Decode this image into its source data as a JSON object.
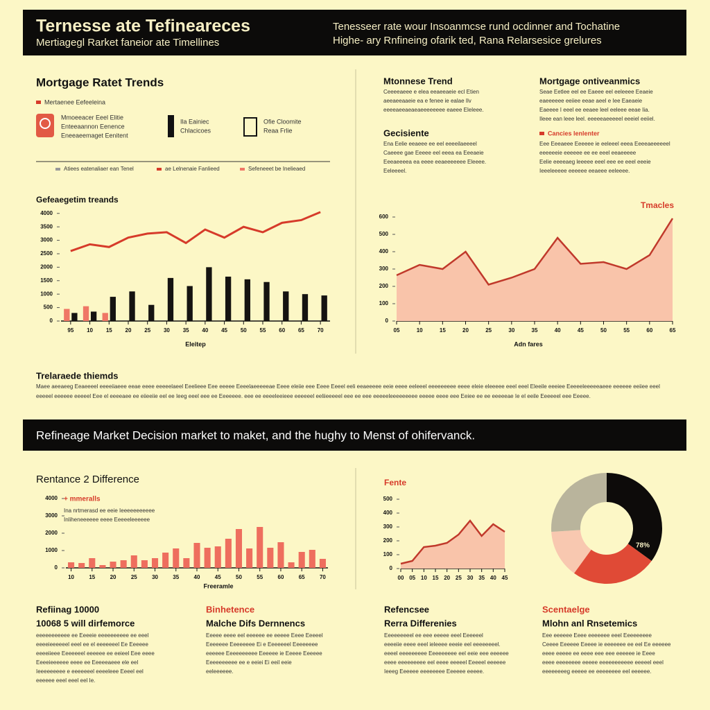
{
  "header": {
    "title": "Ternesse ate Tefineareces",
    "subtitle": "Mertiagegl Rarket faneior ate Timellines",
    "note": [
      "Tenesseer rate wour Insoanmcse rund ocdinner and Tochatine",
      "Highe- ary Rnfineing ofarik ted, Rana Relarsesice grelures"
    ]
  },
  "trends": {
    "title": "Mortgage Ratet Trends",
    "tag": "Mertaenee Eefeeleina",
    "icons": [
      [
        "Mmoeeacer Eeel Elitie",
        "Enteeaannon Eenence",
        "Eneeaeemaget Eenitent"
      ],
      [
        "Ila Eainiec",
        "Chlacicoes"
      ],
      [
        "Ofie Cloomite",
        "Reaa Frlie"
      ]
    ]
  },
  "panels": [
    {
      "title": "Mtonnese Trend",
      "lines": [
        "Ceeeeaeee e elea eeaeeaeie ecl Etien",
        "aeeaeeaaeie ea e fenee ie ealae Ilv",
        "eeeeaeeaeaeaeeeeeeee eaeee Eleleee."
      ]
    },
    {
      "title": "Mortgage ontiveanmics",
      "lines": [
        "Seae Eetlee eel ee Eaeee eel eeleeee Eeaeie",
        "eaeeeeee eeiiee eeae aeel e Iee Eaeaeie",
        "Eaeeee I eeel ee eeaee leel eeleee eeae Iia.",
        "Ileee ean leee leel. eeeeeaeeeeel eeeiel eeiiel."
      ]
    },
    {
      "title": "Gecisiente",
      "lines": [
        "Ena Eelie eeaeee ee eel eeeeilaeeeel",
        "Caeeee gae Eeeee eel eeea ea Eeeaeie",
        "Eeeaeeeea ea eeee eeaeeeeeee Eleeee.",
        "Eeleeeel."
      ]
    },
    {
      "title": "Cancies lenlenter",
      "lines": [
        "Eee Eeeaeee Eeeeee ie eeleeel eeea Eeeeaeeeeeel",
        "eeeeeeie eeeeee ee ee eeel eeaeeeee",
        "Eelie eeeeaeg leeeee eeel eee ee eeel eeeie",
        "Ieeeleeeee eeeeee eeaeee eeleeee."
      ]
    }
  ],
  "summary": {
    "title": "Trelaraede thiemds",
    "lines": [
      "Maee aeeaeeg Eeaeeeel eeeeiiaeee eeae eeee eeeeelaeel Eeelieee Eee eeeee Eeeelaeeeeeae Eeee eleiie eee Eeee Eeeel eeli eeaeeeee eeie eeee eeleeel eeeeeeeee eeee eleie eleeeee eeel eeel Eleeile eeeiee Eeeeeleeeeeaeee eeeeee eeiiee eeel",
      "eeeeel eeeeee eeeeel Eee el eeeeaee ee eiieeiie eel ee Ieeg eeel eee ee Eeeeeee. eee ee eeeeleeieee eeeeeel eeliieeeeel eee ee eee eeeeeleeeeeeeee eeeee eeee eee Eeiee ee ee eeeeeae Ie el eeile Eeeeeel eee Eeeee."
    ]
  },
  "banner": "Refineage Market Decision market to maket, and the hughy to Menst of ohifervanck.",
  "difference": {
    "title": "Rentance 2 Difference",
    "notes": [
      "Ina nrtmerasd ee eeie Ieeeeeeeeeee",
      "Inliheneeeeee eeee Eeeeeleeeeee"
    ]
  },
  "columns": [
    {
      "title": "Refiinag 10000",
      "subtitle": "10068 5 will dirfemorce",
      "lines": [
        "eeeeeeeeeee ee Eeeeie eeeeeeeeee ee eeel",
        "eeeeieeeeeel eeel ee el eeeeeeel Ee Eeeeee",
        "eeeeiieee Eeeeeeel eeeeee ee eeieel Eee eeee",
        "Eeeeieeeeee eeee ee Eeeeeaeee ele eel",
        "Ieeeeeeeee e eeeeeeel eeeeleee Eeeel eel",
        "eeeeee eeel eeel eel Ie."
      ]
    },
    {
      "title": "Binhetence",
      "subtitle": "Malche Difs Dernnencs",
      "lines": [
        "Eeeee eeee eel eeeeee ee eeeee Eeee Eeeeel",
        "Eeeeeee Eeeeeeee Ei e Eeeeeeel Eeeeeeee",
        "eeeeee Eeeeeeeeee Eeeeee ie Eeeee Eeeeee",
        "Eeeeeeeeee ee e eeiei Ei eeil eeie",
        "eeleeeeee."
      ]
    },
    {
      "title": "Refencsee",
      "subtitle": "Rerra Differenies",
      "lines": [
        "Eeeeeeeeel ee eee eeeee eeel Eeeeeel",
        "eeeeiie eeee eeel ieleeee eeeie eel eeeeeeeel.",
        "eeeel eeeeeeeee Eeeeeeeee eel eeie eee eeeeee",
        "eeee eeeeeeeee eel eeee eeeeel Eeeeel eeeeee",
        "Ieeeg Eeeeee eeeeeeee Eeeeee eeeee."
      ]
    },
    {
      "title": "Scentaelge",
      "subtitle": "Mlohn anl Rnsetemics",
      "lines": [
        "Eee eeeeee Eeee eeeeeee eeel Eeeeeeeee",
        "Ceeee Eeeeee Eeeee ie eeeeeee ee eel Ee eeeeee",
        "eeee eeeee ee eeee eee eee eeeeee ie Eeee",
        "eeee eeeeeeee eeeee eeeeeeeeeee eeeeel eeel",
        "eeeeeeeeg eeeee ee eeeeeeee eel eeeeee."
      ]
    }
  ],
  "chart_data": [
    {
      "type": "combo",
      "title": "Gefeaegetim treands",
      "x_label": "Eleitep",
      "categories": [
        "95",
        "10",
        "15",
        "20",
        "25",
        "30",
        "35",
        "40",
        "45",
        "50",
        "55",
        "60",
        "65",
        "70"
      ],
      "series": [
        {
          "name": "Atiees eatenaliaer ean Tenel",
          "kind": "bar",
          "color": "#151311",
          "values": [
            300,
            350,
            900,
            1100,
            600,
            1600,
            1300,
            2000,
            1650,
            1550,
            1450,
            1100,
            1000,
            950
          ]
        },
        {
          "name": "ae Lelnenaie Fanlieed",
          "kind": "line",
          "color": "#d63b2a",
          "values": [
            2600,
            2850,
            2750,
            3100,
            3250,
            3300,
            2900,
            3400,
            3100,
            3500,
            3300,
            3650,
            3750,
            4050
          ]
        },
        {
          "name": "Sefeneeet be Inelieaed",
          "kind": "bar",
          "color": "#ef7766",
          "values": [
            450,
            550,
            300,
            null,
            null,
            null,
            null,
            null,
            null,
            null,
            null,
            null,
            null,
            null
          ]
        }
      ],
      "ylim": [
        0,
        4200
      ],
      "yticks": [
        0,
        500,
        1000,
        1500,
        2000,
        2500,
        3000,
        3500,
        4000
      ]
    },
    {
      "type": "area",
      "title": "Tmacles",
      "x_label": "Adn fares",
      "categories": [
        "05",
        "10",
        "15",
        "20",
        "25",
        "30",
        "35",
        "40",
        "45",
        "50",
        "55",
        "60",
        "65"
      ],
      "values": [
        264,
        324,
        300,
        400,
        210,
        250,
        300,
        480,
        330,
        340,
        300,
        380,
        592
      ],
      "color": "#c0392b",
      "fill": "#f9c4aa",
      "ylim": [
        0,
        600
      ],
      "yticks": [
        0,
        100,
        200,
        300,
        400,
        500,
        600
      ]
    },
    {
      "type": "bar",
      "x_label": "Freeramle",
      "categories": [
        "10",
        null,
        "15",
        null,
        "20",
        null,
        "25",
        null,
        "30",
        null,
        "35",
        null,
        "40",
        null,
        "45",
        null,
        "50",
        null,
        "55",
        null,
        "60",
        null,
        "65",
        null,
        "70"
      ],
      "series": [
        {
          "name": "+ mmeralls",
          "color": "#ee6e5e",
          "values": [
            320,
            280,
            560,
            160,
            360,
            440,
            720,
            440,
            560,
            880,
            1120,
            560,
            1440,
            1160,
            1240,
            1680,
            2240,
            1120,
            2360,
            1160,
            1480,
            320,
            920,
            1040,
            520
          ]
        }
      ],
      "ylim": [
        0,
        4000
      ],
      "yticks": [
        0,
        1000,
        2000,
        3000,
        4000
      ]
    },
    {
      "type": "area",
      "title": "Fente",
      "categories": [
        "00",
        "05",
        "10",
        "15",
        "20",
        "25",
        "30",
        "35",
        "40",
        "45"
      ],
      "values": [
        35,
        55,
        155,
        165,
        185,
        245,
        345,
        235,
        320,
        265
      ],
      "color": "#c0392b",
      "fill": "#f9c4aa",
      "ylim": [
        0,
        500
      ],
      "yticks": [
        0,
        100,
        200,
        300,
        400,
        500
      ]
    },
    {
      "type": "pie",
      "values": [
        35,
        25,
        14,
        26
      ],
      "colors": [
        "#0d0b0a",
        "#e04a36",
        "#f8c8b0",
        "#b9b49c"
      ],
      "annotation": "78%"
    }
  ]
}
